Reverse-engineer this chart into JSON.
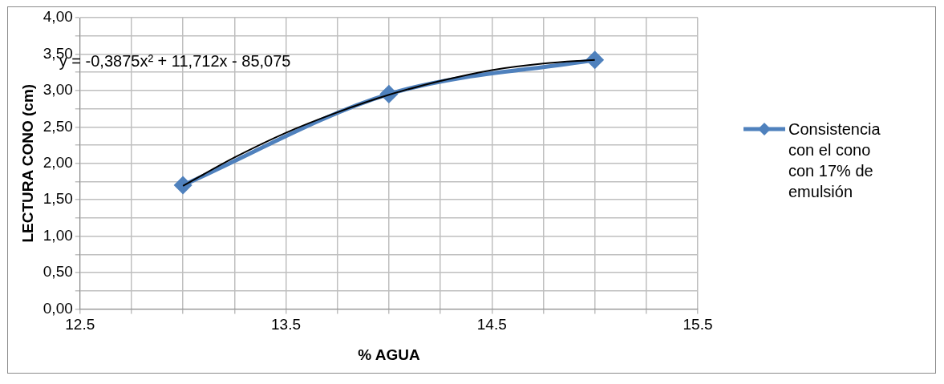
{
  "chart_data": {
    "type": "line",
    "xlabel": "% AGUA",
    "ylabel": "LECTURA CONO (cm)",
    "x": [
      13,
      14,
      15
    ],
    "series": [
      {
        "name": "Consistencia con el cono con 17% de emulsión",
        "color": "#4f81bd",
        "values": [
          1.7,
          2.95,
          3.42
        ],
        "marker": "diamond"
      },
      {
        "type": "line",
        "color": "#000000",
        "x": [
          13,
          13.25,
          13.5,
          13.75,
          14,
          14.25,
          14.5,
          14.75,
          15
        ],
        "values": [
          1.69,
          2.08,
          2.42,
          2.7,
          2.94,
          3.13,
          3.28,
          3.37,
          3.42
        ],
        "marker": "none"
      }
    ],
    "xlim": [
      12.5,
      15.5
    ],
    "xticks": [
      12.5,
      {
        "value": 12.75,
        "label": null
      },
      {
        "value": 13,
        "label": null
      },
      {
        "value": 13.25,
        "label": null
      },
      13.5,
      {
        "value": 13.75,
        "label": null
      },
      {
        "value": 14,
        "label": null
      },
      {
        "value": 14.25,
        "label": null
      },
      14.5,
      {
        "value": 14.75,
        "label": null
      },
      {
        "value": 15,
        "label": null
      },
      {
        "value": 15.25,
        "label": null
      },
      15.5
    ],
    "ylim": [
      0,
      4
    ],
    "yticks": [
      {
        "value": 0,
        "label": "0,00"
      },
      {
        "value": 0.25,
        "label": null
      },
      {
        "value": 0.5,
        "label": "0,50"
      },
      {
        "value": 0.75,
        "label": null
      },
      {
        "value": 1,
        "label": "1,00"
      },
      {
        "value": 1.25,
        "label": null
      },
      {
        "value": 1.5,
        "label": "1,50"
      },
      {
        "value": 1.75,
        "label": null
      },
      {
        "value": 2,
        "label": "2,00"
      },
      {
        "value": 2.25,
        "label": null
      },
      {
        "value": 2.5,
        "label": "2,50"
      },
      {
        "value": 2.75,
        "label": null
      },
      {
        "value": 3,
        "label": "3,00"
      },
      {
        "value": 3.25,
        "label": null
      },
      {
        "value": 3.5,
        "label": "3,50"
      },
      {
        "value": 3.75,
        "label": null
      },
      {
        "value": 4,
        "label": "4,00"
      }
    ],
    "annotations": [
      "y = -0,3875x² + 11,712x - 85,075"
    ],
    "grid": true,
    "legend": "right",
    "line_style": "solid"
  }
}
